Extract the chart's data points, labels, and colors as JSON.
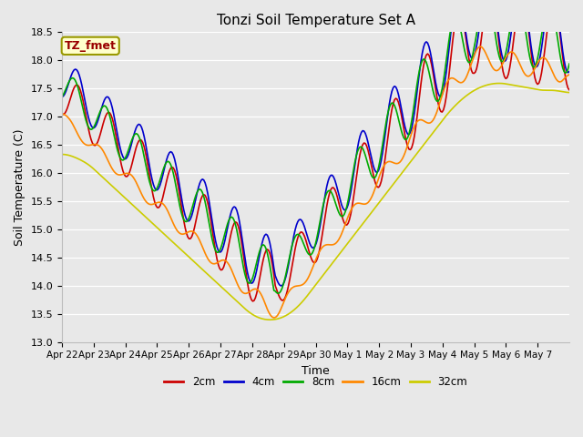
{
  "title": "Tonzi Soil Temperature Set A",
  "xlabel": "Time",
  "ylabel": "Soil Temperature (C)",
  "ylim": [
    13.0,
    18.5
  ],
  "yticks": [
    13.0,
    13.5,
    14.0,
    14.5,
    15.0,
    15.5,
    16.0,
    16.5,
    17.0,
    17.5,
    18.0,
    18.5
  ],
  "line_colors": [
    "#cc0000",
    "#0000cc",
    "#00aa00",
    "#ff8800",
    "#cccc00"
  ],
  "line_labels": [
    "2cm",
    "4cm",
    "8cm",
    "16cm",
    "32cm"
  ],
  "annotation_text": "TZ_fmet",
  "annotation_color": "#990000",
  "annotation_bg": "#ffffcc",
  "annotation_border": "#999900",
  "bg_color": "#e8e8e8",
  "xtick_labels": [
    "Apr 22",
    "Apr 23",
    "Apr 24",
    "Apr 25",
    "Apr 26",
    "Apr 27",
    "Apr 28",
    "Apr 29",
    "Apr 30",
    "May 1",
    "May 2",
    "May 3",
    "May 4",
    "May 5",
    "May 6",
    "May 7"
  ],
  "days": 16
}
